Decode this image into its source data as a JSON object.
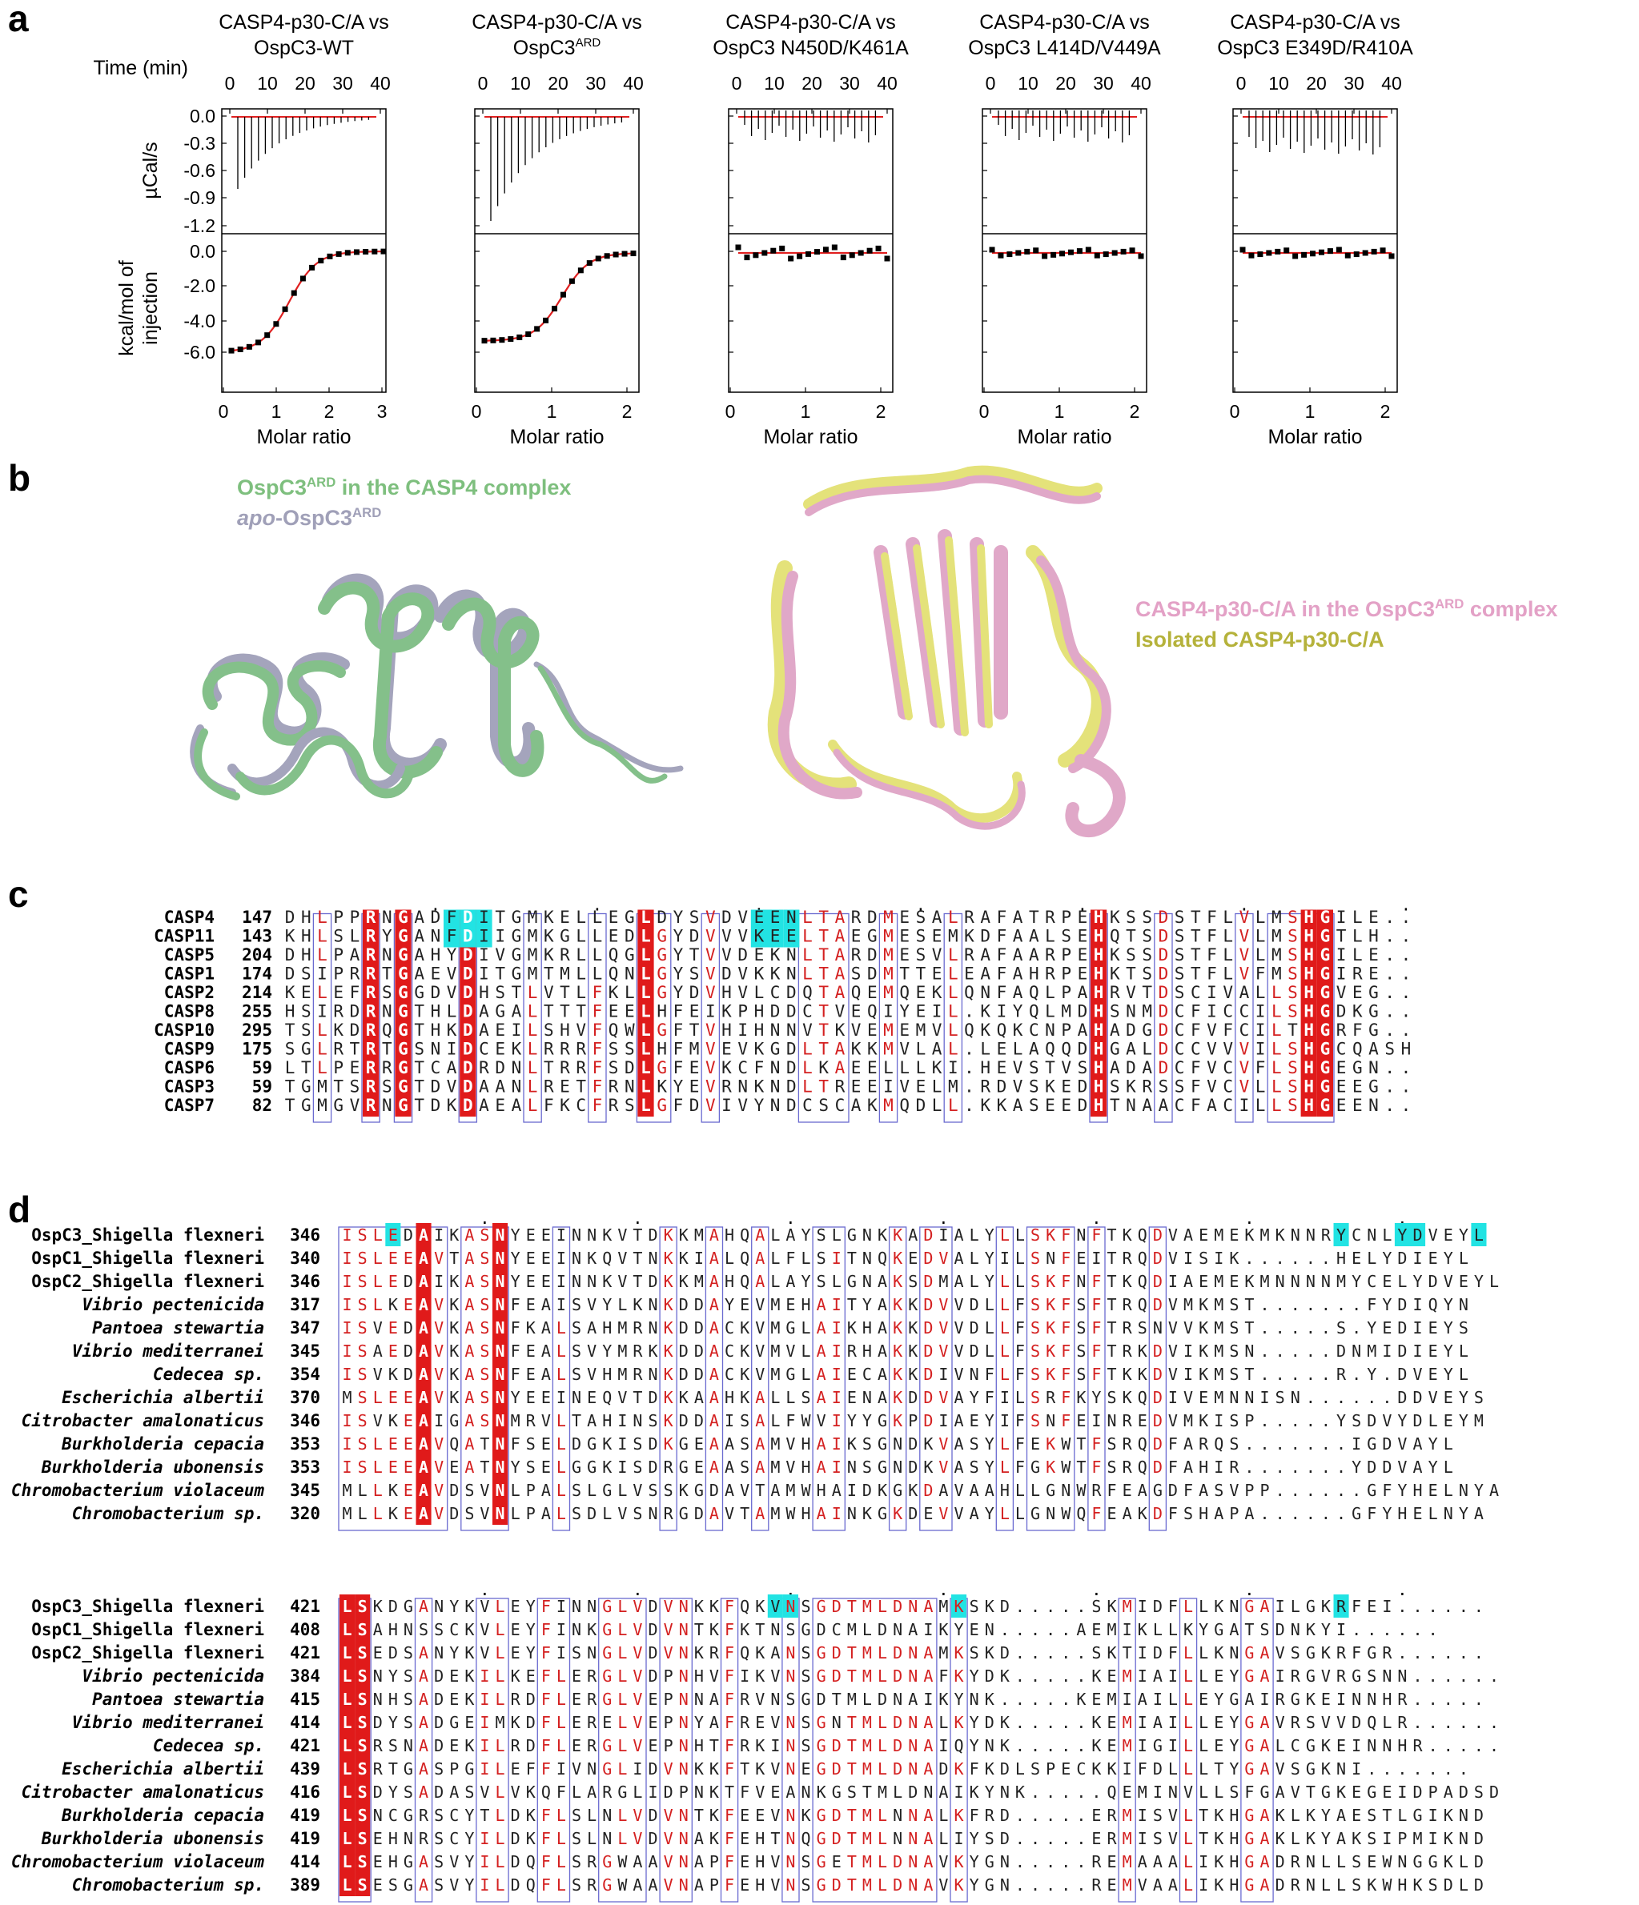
{
  "panels": {
    "a": {
      "letter": "a",
      "time_axis_label": "Time (min)",
      "y_axis_top_label": "µCal/s",
      "y_axis_bottom_label_1": "kcal/mol of",
      "y_axis_bottom_label_2": "injection",
      "x_axis_label": "Molar ratio",
      "time_ticks": [
        "0",
        "10",
        "20",
        "30",
        "40"
      ],
      "top_ticks": [
        "0.0",
        "-0.3",
        "-0.6",
        "-0.9",
        "-1.2"
      ],
      "bottom_ticks": [
        "0.0",
        "-2.0",
        "-4.0",
        "-6.0"
      ],
      "subplots": [
        {
          "title_1": "CASP4-p30-C/A vs",
          "title_2": "OspC3-WT",
          "title_sup": "",
          "molar_ticks": [
            "0",
            "1",
            "2",
            "3"
          ]
        },
        {
          "title_1": "CASP4-p30-C/A vs",
          "title_2": "OspC3",
          "title_sup": "ARD",
          "molar_ticks": [
            "0",
            "1",
            "2"
          ]
        },
        {
          "title_1": "CASP4-p30-C/A vs",
          "title_2": "OspC3 N450D/K461A",
          "title_sup": "",
          "molar_ticks": [
            "0",
            "1",
            "2"
          ]
        },
        {
          "title_1": "CASP4-p30-C/A vs",
          "title_2": "OspC3 L414D/V449A",
          "title_sup": "",
          "molar_ticks": [
            "0",
            "1",
            "2"
          ]
        },
        {
          "title_1": "CASP4-p30-C/A vs",
          "title_2": "OspC3 E349D/R410A",
          "title_sup": "",
          "molar_ticks": [
            "0",
            "1",
            "2"
          ]
        }
      ]
    },
    "b": {
      "letter": "b",
      "legend_green": "OspC3",
      "legend_green_sup": "ARD",
      "legend_green_rest": " in the CASP4 complex",
      "legend_apo_italic": "apo",
      "legend_apo_rest": "-OspC3",
      "legend_apo_sup": "ARD",
      "legend_pink": "CASP4-p30-C/A in the OspC3",
      "legend_pink_sup": "ARD",
      "legend_pink_rest": " complex",
      "legend_yellow": "Isolated CASP4-p30-C/A",
      "colors": {
        "green": "#84c08a",
        "grey": "#a4a4bc",
        "pink": "#e0a8c8",
        "yellow": "#e4e27a",
        "pink_text": "#e3a1c6",
        "yellow_text": "#b5b23b",
        "green_text": "#7ebf7e",
        "grey_text": "#a0a0b8"
      }
    },
    "c": {
      "letter": "c",
      "rows": [
        {
          "name": "CASP4",
          "start": "147",
          "seq": "DHLPPRNGADFDITGMKELLEGLDYSVDVEENLTARDMESALRAFATRPEHKSSDSTFLVLMSHGILE.."
        },
        {
          "name": "CASP11",
          "start": "143",
          "seq": "KHLSLRYGANFDIIGMKGLLEDLGYDVVVKEELTAEGMESEMKDFAALSEHQTSDSTFLVLMSHGTLH.."
        },
        {
          "name": "CASP5",
          "start": "204",
          "seq": "DHLPARNGAHYDIVGMKRLLQGLGYTVVDEKNLTARDMESVLRAFAARPEHKSSDSTFLVLMSHGILE.."
        },
        {
          "name": "CASP1",
          "start": "174",
          "seq": "DSIPRRTGAEVDITGMTMLLQNLGYSVDVKKNLTASDMTTELEAFAHRPEHKTSDSTFLVFMSHGIRE.."
        },
        {
          "name": "CASP2",
          "start": "214",
          "seq": "KELEFRSGGDVDHSTLVTLFKLLGYDVHVLCDQTAQEMQEKLQNFAQLPAHRVTDSCIVALLSHGVEG.."
        },
        {
          "name": "CASP8",
          "start": "255",
          "seq": "HSIRDRNGTHLDAGALTTTFEELHFEIKPHDDCTVEQIYEIL.KIYQLMDHSNMDCFICCILSHGDKG.."
        },
        {
          "name": "CASP10",
          "start": "295",
          "seq": "TSLKDRQGTHKDAEILSHVFQWLGFTVHIHNNVTKVEMEMVLQKQKCNPAHADGDCFVFCILTHGRFG.."
        },
        {
          "name": "CASP9",
          "start": "175",
          "seq": "SGLRTRTGSNIDCEKLRRRFSSLHFMVEVKGDLTAKKMVLAL.LELAQQDHGALDCCVVVILSHGCQASH"
        },
        {
          "name": "CASP6",
          "start": "59",
          "seq": "LTLPERRGTCADRDNLTRRFSDLGFEVKCFNDLKAEELLLKI.HEVSTVSHADADCFVCVFLSHGEGN.."
        },
        {
          "name": "CASP3",
          "start": "59",
          "seq": "TGMTSRSGTDVDAANLRETFRNLKYEVRNKNDLTREEIVELM.RDVSKEDHSKRSSFVCVLLSHGEEG.."
        },
        {
          "name": "CASP7",
          "start": "82",
          "seq": "TGMGVRNGTDKDAEALFKCFRSLGFDVIVYNDCSCAKMQDLL.KKASEEDHTNAACFACILLSHGEEN.."
        }
      ]
    },
    "d": {
      "letter": "d",
      "block1": [
        {
          "name": "OspC3_Shigella flexneri",
          "start": "346",
          "seq": "ISLEDAIKASNYEEINNKVTDKKMAHQALAYSLGNKKADIALYLLSKFNFTKQDVAEMEKMKNNRYCNLYDVEYL"
        },
        {
          "name": "OspC1_Shigella flexneri",
          "start": "340",
          "seq": "ISLEEAVTASNYEEINKQVTNKKIALQALFLSITNQKEDVALYILSNFEITRQDVISIK......HELYDIEYL"
        },
        {
          "name": "OspC2_Shigella flexneri",
          "start": "346",
          "seq": "ISLEDAIKASNYEEINNKVTDKKMAHQALAYSLGNAKSDMALYLLSKFNFTKQDIAEMEKMNNNNMYCELYDVEYL"
        },
        {
          "name": "Vibrio pectenicida",
          "start": "317",
          "seq": "ISLKEAVKASNFEAISVYLKNKDDAYEVMEHAITYAKKDVVDLLFSKFSFTRQDVMKMST.......FYDIQYN"
        },
        {
          "name": "Pantoea stewartia",
          "start": "347",
          "seq": "ISVEDAVKASNFKALSAHMRNKDDACKVMGLAIKHAKKDVVDLLFSKFSFTRSNVVKMST.....S.YEDIEYS"
        },
        {
          "name": "Vibrio mediterranei",
          "start": "345",
          "seq": "ISAEDAVKASNFEALSVYMRKKDDACKVMVLAIRHAKKDVVDLLFSKFSFTRKDVIKMSN.....DNMIDIEYL"
        },
        {
          "name": "Cedecea sp.",
          "start": "354",
          "seq": "ISVKDAVKASNFEALSVHMRNKDDACKVMGLAIECAKKDIVNFLFSKFSFTKKDVIKMST.....R.Y.DVEYL"
        },
        {
          "name": "Escherichia albertii",
          "start": "370",
          "seq": "MSLEEAVKASNYEEINEQVTDKKAAHKALLSAIENAKDDVAYFILSRFKYSKQDIVEMNNISN......DDVEYS"
        },
        {
          "name": "Citrobacter amalonaticus",
          "start": "346",
          "seq": "ISVKEAIGASNMRVLTAHINSKDDAISALFWVIYYGKPDIAEYIFSNFEINREDVMKISP.....YSDVYDLEYM"
        },
        {
          "name": "Burkholderia cepacia",
          "start": "353",
          "seq": "ISLEEAVQATNFSELDGKISDKGEAASAMVHAIKSGNDKVASYLFEKWTFSRQDFARQS.......IGDVAYL"
        },
        {
          "name": "Burkholderia ubonensis",
          "start": "353",
          "seq": "ISLEEAVEATNYSELGGKISDRGEAASAMVHAINSGNDKVASYLFGKWTFSRQDFAHIR.......YDDVAYL"
        },
        {
          "name": "Chromobacterium violaceum",
          "start": "345",
          "seq": "MLLKEAVDSVNLPALSLGLVSSKGDAVTAMWHAIDKGKDAVAAHLLGNWRFEAGDFASVPP......GFYHELNYA"
        },
        {
          "name": "Chromobacterium sp.",
          "start": "320",
          "seq": "MLLKEAVDSVNLPALSDLVSNRGDAVTAMWHAINKGKDEVVAYLLGNWQFEAKDFSHAPA......GFYHELNYA"
        }
      ],
      "block2": [
        {
          "name": "OspC3_Shigella flexneri",
          "start": "421",
          "seq": "LSKDGANYKVLEYFINNGLVDVNKKFQKVNSGDTMLDNAMKSKD.....SKMIDFLLKNGAILGKRFEI......"
        },
        {
          "name": "OspC1_Shigella flexneri",
          "start": "408",
          "seq": "LSAHNSSCKVLEYFINKGLVDVNTKFKTNSGDCMLDNAIKYEN.....AEMIKLLKYGATSDNKYI......"
        },
        {
          "name": "OspC2_Shigella flexneri",
          "start": "421",
          "seq": "LSEDSANYKVLEYFISNGLVDVNKRFQKANSGDTMLDNAMKSKD.....SKTIDFLLKNGAVSGKRFGR......"
        },
        {
          "name": "Vibrio pectenicida",
          "start": "384",
          "seq": "LSNYSADEKILKEFLERGLVDPNHVFIKVNSGDTMLDNAFKYDK.....KEMIAILLEYGAIRGVRGSNN......"
        },
        {
          "name": "Pantoea stewartia",
          "start": "415",
          "seq": "LSNHSADEKILRDFLERGLVEPNNAFRVNSGDTMLDNAIKYNK.....KEMIAILLEYGAIRGKEINNHR....."
        },
        {
          "name": "Vibrio mediterranei",
          "start": "414",
          "seq": "LSDYSADGEIMKDFLERELVEPNYAFREVNSGNTMLDNALKYDK.....KEMIAILLEYGAVRSVVDQLR......"
        },
        {
          "name": "Cedecea sp.",
          "start": "421",
          "seq": "LSRSNADEKILRDFLERGLVEPNHTFRKINSGDTMLDNAIQYNK.....KEMIGILLEYGALCGKEINNHR....."
        },
        {
          "name": "Escherichia albertii",
          "start": "439",
          "seq": "LSRTGASPGILEFFIVNGLIDVNKKFTKVNEGDTMLDNADKFKDLSPECKKIFDLLLTYGAVSGKNI......."
        },
        {
          "name": "Citrobacter amalonaticus",
          "start": "416",
          "seq": "LSDYSADASVLVKQFLARGLIDPNKTFVEANKGSTMLDNAIKYNK.....QEMINVLLSFGAVTGKEGEIDPADSD"
        },
        {
          "name": "Burkholderia cepacia",
          "start": "419",
          "seq": "LSNCGRSCYTLDKFLSLNLVDVNTKFEEVNKGDTMLNNALKFRD.....ERMISVLTKHGAKLKYAESTLGIKND"
        },
        {
          "name": "Burkholderia ubonensis",
          "start": "419",
          "seq": "LSEHNRSCYILDKFLSLNLVDVNAKFEHTNQGDTMLNNALIYSD.....ERMISVLTKHGAKLKYAKSIPMIKND"
        },
        {
          "name": "Chromobacterium violaceum",
          "start": "414",
          "seq": "LSEHGASVYILDQFLSRGWAAVNAPFEHVNSGETMLDNAVKYGN.....REMAAALIKHGADRNLLSEWNGGKLD"
        },
        {
          "name": "Chromobacterium sp.",
          "start": "389",
          "seq": "LSESGASVYILDQFLSRGWAAVNAPFEHVNSGDTMLDNAVKYGN.....REMVAALIKHGADRNLLSKWHKSDLD"
        }
      ],
      "alignment_colors": {
        "red_fill": "#e01a1a",
        "red_text": "#d42020",
        "box": "#6a6ad0",
        "cyan": "#22e3e3"
      }
    }
  }
}
